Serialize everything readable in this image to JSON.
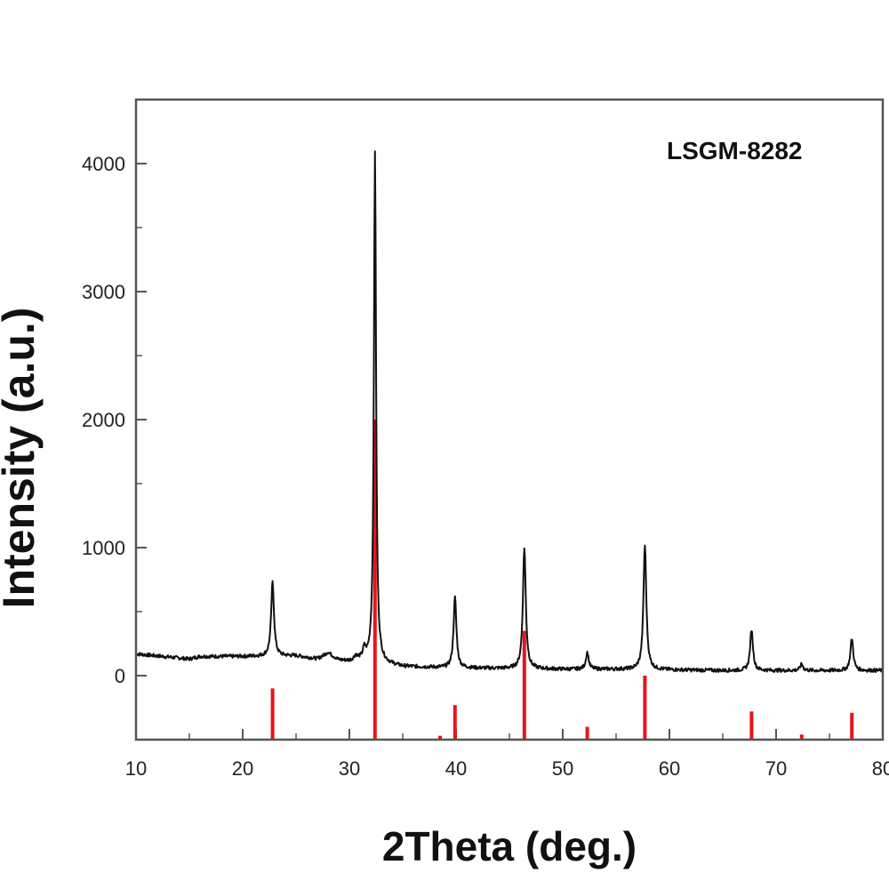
{
  "chart_data": {
    "type": "line",
    "title": "",
    "xlabel": "2Theta (deg.)",
    "ylabel": "Intensity (a.u.)",
    "xlim": [
      10,
      80
    ],
    "ylim": [
      -500,
      4500
    ],
    "x_ticks": [
      10,
      20,
      30,
      40,
      50,
      60,
      70,
      80
    ],
    "x_tick_labels": [
      "10",
      "20",
      "30",
      "40",
      "50",
      "60",
      "70",
      "80"
    ],
    "y_ticks": [
      0,
      1000,
      2000,
      3000,
      4000
    ],
    "y_tick_labels": [
      "0",
      "1000",
      "2000",
      "3000",
      "4000"
    ],
    "grid": false,
    "legend": {
      "placement": "top-right",
      "entries": [
        "LSGM-8282"
      ]
    },
    "colors": {
      "measured": "#111111",
      "reference": "#e8141c"
    },
    "series": [
      {
        "name": "LSGM-8282",
        "baseline": [
          [
            10,
            170
          ],
          [
            15,
            130
          ],
          [
            16,
            150
          ],
          [
            20,
            150
          ],
          [
            25,
            155
          ],
          [
            27,
            130
          ],
          [
            28,
            170
          ],
          [
            29,
            120
          ],
          [
            30,
            110
          ],
          [
            31,
            120
          ],
          [
            35,
            70
          ],
          [
            40,
            60
          ],
          [
            45,
            55
          ],
          [
            50,
            50
          ],
          [
            55,
            50
          ],
          [
            60,
            45
          ],
          [
            65,
            40
          ],
          [
            70,
            40
          ],
          [
            75,
            40
          ],
          [
            80,
            40
          ]
        ],
        "peaks": [
          {
            "x": 22.8,
            "y": 730
          },
          {
            "x": 28.0,
            "y": 180
          },
          {
            "x": 30.6,
            "y": 150
          },
          {
            "x": 31.4,
            "y": 190
          },
          {
            "x": 32.4,
            "y": 4100
          },
          {
            "x": 39.9,
            "y": 610
          },
          {
            "x": 46.4,
            "y": 1000
          },
          {
            "x": 52.3,
            "y": 180
          },
          {
            "x": 57.7,
            "y": 1020
          },
          {
            "x": 67.7,
            "y": 360
          },
          {
            "x": 72.4,
            "y": 90
          },
          {
            "x": 77.1,
            "y": 290
          }
        ]
      }
    ],
    "reference_lines": [
      {
        "x": 22.8,
        "y": -100
      },
      {
        "x": 32.4,
        "y": 2000
      },
      {
        "x": 38.5,
        "y": -470
      },
      {
        "x": 39.9,
        "y": -230
      },
      {
        "x": 46.4,
        "y": 350
      },
      {
        "x": 52.3,
        "y": -400
      },
      {
        "x": 57.7,
        "y": 0
      },
      {
        "x": 67.7,
        "y": -280
      },
      {
        "x": 72.4,
        "y": -460
      },
      {
        "x": 77.1,
        "y": -290
      }
    ]
  }
}
